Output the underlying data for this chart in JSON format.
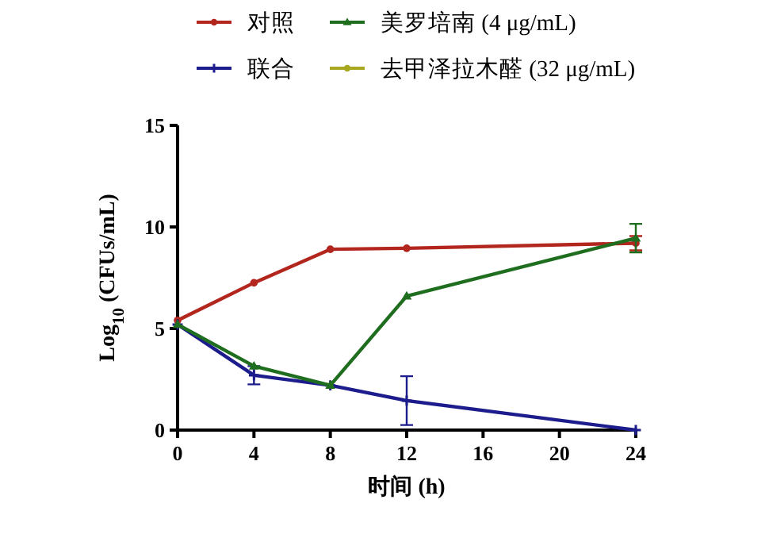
{
  "chart_data": {
    "type": "line",
    "xlabel": "时间 (h)",
    "ylabel": "Log$_{10}$ (CFUs/mL)",
    "xlim": [
      0,
      24
    ],
    "xticks": [
      0,
      4,
      8,
      12,
      16,
      20,
      24
    ],
    "ylim": [
      0,
      15
    ],
    "yticks": [
      0,
      5,
      10,
      15
    ],
    "legend": "top",
    "grid": false,
    "line_style": "solid",
    "series": [
      {
        "name": "对照",
        "color": "#b3261e",
        "marker": "circle",
        "x": [
          0,
          4,
          8,
          12,
          24
        ],
        "values": [
          5.4,
          7.25,
          8.9,
          8.95,
          9.2
        ],
        "errors": [
          null,
          null,
          null,
          null,
          0.35
        ]
      },
      {
        "name": "联合",
        "color": "#1c1c8c",
        "marker": "cross",
        "x": [
          0,
          4,
          8,
          12,
          24
        ],
        "values": [
          5.2,
          2.7,
          2.2,
          1.45,
          0
        ],
        "errors": [
          null,
          0.45,
          null,
          1.2,
          null
        ]
      },
      {
        "name": "美罗培南 (4 μg/mL)",
        "color": "#1f6e1f",
        "marker": "triangle",
        "x": [
          0,
          4,
          8,
          12,
          24
        ],
        "values": [
          5.2,
          3.15,
          2.2,
          6.6,
          9.45
        ],
        "errors": [
          null,
          null,
          null,
          null,
          0.7
        ]
      },
      {
        "name": "去甲泽拉木醛 (32 μg/mL)",
        "color": "#a8a820",
        "marker": "circle",
        "values": [
          null,
          null,
          null,
          null,
          null
        ]
      }
    ]
  }
}
